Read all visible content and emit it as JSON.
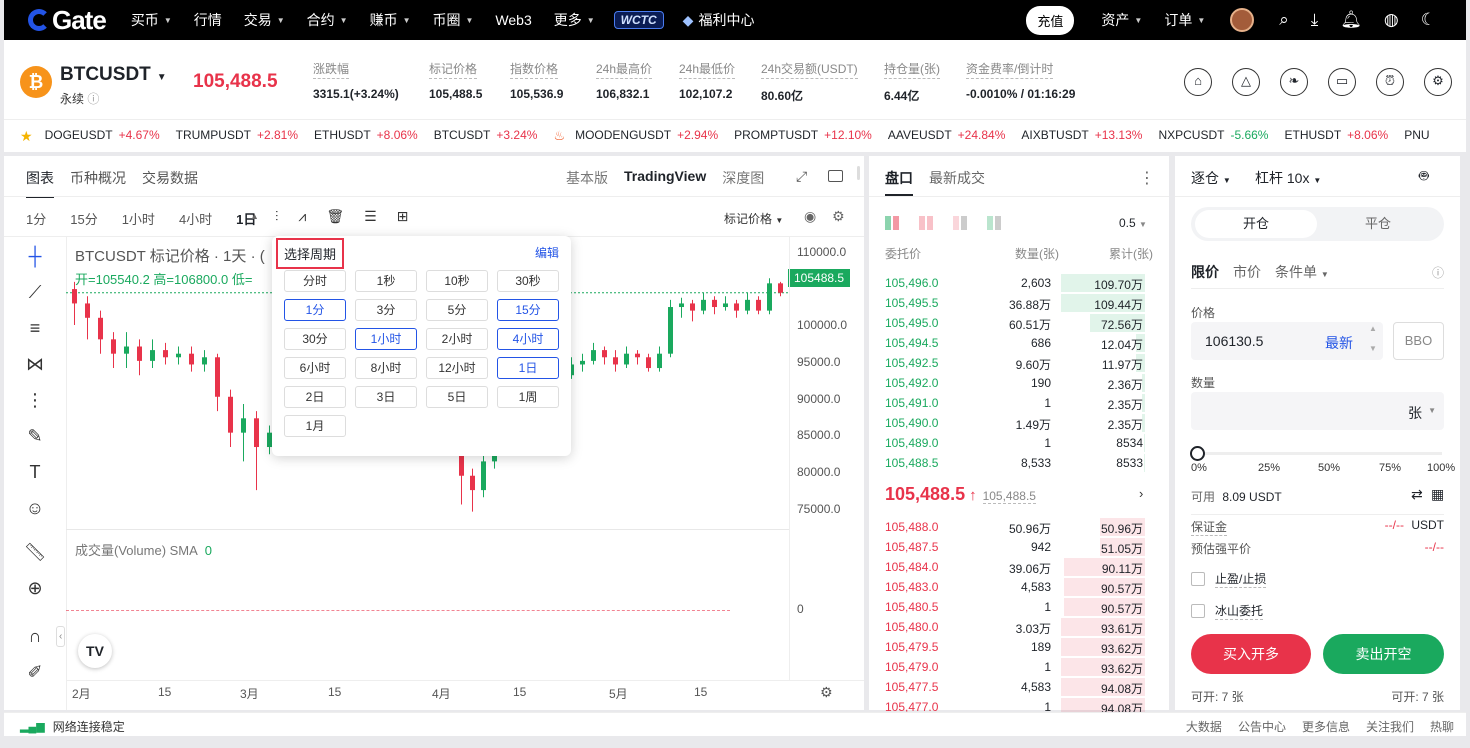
{
  "nav": {
    "logo": "Gate",
    "items": [
      "买币",
      "行情",
      "交易",
      "合约",
      "赚币",
      "币圈",
      "Web3",
      "更多"
    ],
    "carets": [
      true,
      false,
      true,
      true,
      true,
      true,
      false,
      true
    ],
    "wctc": "WCTC",
    "welfare": "福利中心",
    "deposit": "充值",
    "assets": "资产",
    "orders": "订单"
  },
  "header": {
    "symbol": "BTCUSDT",
    "subtitle": "永续",
    "last_price": "105,488.5",
    "stats": [
      {
        "label": "涨跌幅",
        "value": "3315.1(+3.24%)",
        "tone": "up"
      },
      {
        "label": "标记价格",
        "value": "105,488.5",
        "tone": ""
      },
      {
        "label": "指数价格",
        "value": "105,536.9",
        "tone": ""
      },
      {
        "label": "24h最高价",
        "value": "106,832.1",
        "tone": ""
      },
      {
        "label": "24h最低价",
        "value": "102,107.2",
        "tone": ""
      },
      {
        "label": "24h交易额(USDT)",
        "value": "80.60亿",
        "tone": ""
      },
      {
        "label": "持仓量(张)",
        "value": "6.44亿",
        "tone": ""
      },
      {
        "label": "资金费率/倒计时",
        "value": "-0.0010% / 01:16:29",
        "tone": "dn"
      }
    ]
  },
  "ticker": [
    {
      "name": "DOGEUSDT",
      "chg": "+4.67%",
      "tone": "up"
    },
    {
      "name": "TRUMPUSDT",
      "chg": "+2.81%",
      "tone": "up"
    },
    {
      "name": "ETHUSDT",
      "chg": "+8.06%",
      "tone": "up"
    },
    {
      "name": "BTCUSDT",
      "chg": "+3.24%",
      "tone": "up"
    },
    {
      "name": "MOODENGUSDT",
      "chg": "+2.94%",
      "tone": "up"
    },
    {
      "name": "PROMPTUSDT",
      "chg": "+12.10%",
      "tone": "up"
    },
    {
      "name": "AAVEUSDT",
      "chg": "+24.84%",
      "tone": "up"
    },
    {
      "name": "AIXBTUSDT",
      "chg": "+13.13%",
      "tone": "up"
    },
    {
      "name": "NXPCUSDT",
      "chg": "-5.66%",
      "tone": "dn"
    },
    {
      "name": "ETHUSDT",
      "chg": "+8.06%",
      "tone": "up"
    },
    {
      "name": "PNU",
      "chg": "",
      "tone": "up"
    }
  ],
  "chart": {
    "tabs": [
      "图表",
      "币种概况",
      "交易数据"
    ],
    "views": [
      "基本版",
      "TradingView",
      "深度图"
    ],
    "intervals": [
      "1分",
      "15分",
      "1小时",
      "4小时",
      "1日"
    ],
    "mark_price_label": "标记价格",
    "title": "BTCUSDT 标记价格 · 1天 · (",
    "ohlc": "开=105540.2  高=106800.0  低=",
    "volume_label": "成交量(Volume) SMA",
    "volume_value": "0",
    "y_ticks": [
      "110000.0",
      "100000.0",
      "95000.0",
      "90000.0",
      "85000.0",
      "80000.0",
      "75000.0"
    ],
    "price_tag": "105488.5",
    "vol_zero": "0",
    "x_ticks": [
      "2月",
      "15",
      "3月",
      "15",
      "4月",
      "15",
      "5月",
      "15"
    ]
  },
  "chart_data": {
    "type": "candlestick",
    "ylim": [
      73000,
      112000
    ],
    "candles": [
      [
        106000,
        104000,
        107000,
        101000
      ],
      [
        104000,
        102000,
        105000,
        99000
      ],
      [
        102000,
        99000,
        103000,
        97000
      ],
      [
        99000,
        97000,
        100000,
        95000
      ],
      [
        97000,
        98000,
        100000,
        95000
      ],
      [
        98000,
        96000,
        99000,
        94000
      ],
      [
        96000,
        97500,
        99000,
        95000
      ],
      [
        97500,
        96500,
        98500,
        95500
      ],
      [
        96500,
        97000,
        98000,
        95500
      ],
      [
        97000,
        95500,
        98000,
        94500
      ],
      [
        95500,
        96500,
        97500,
        94500
      ],
      [
        96500,
        91000,
        97000,
        89000
      ],
      [
        91000,
        86000,
        92000,
        84000
      ],
      [
        86000,
        88000,
        90000,
        82000
      ],
      [
        88000,
        84000,
        89000,
        78000
      ],
      [
        84000,
        86000,
        87000,
        83000
      ]
    ]
  },
  "timeframe_popup": {
    "title": "选择周期",
    "edit": "编辑",
    "options": [
      {
        "label": "分时",
        "sel": false
      },
      {
        "label": "1秒",
        "sel": false
      },
      {
        "label": "10秒",
        "sel": false
      },
      {
        "label": "30秒",
        "sel": false
      },
      {
        "label": "1分",
        "sel": true
      },
      {
        "label": "3分",
        "sel": false
      },
      {
        "label": "5分",
        "sel": false
      },
      {
        "label": "15分",
        "sel": true
      },
      {
        "label": "30分",
        "sel": false
      },
      {
        "label": "1小时",
        "sel": true
      },
      {
        "label": "2小时",
        "sel": false
      },
      {
        "label": "4小时",
        "sel": true
      },
      {
        "label": "6小时",
        "sel": false
      },
      {
        "label": "8小时",
        "sel": false
      },
      {
        "label": "12小时",
        "sel": false
      },
      {
        "label": "1日",
        "sel": true
      },
      {
        "label": "2日",
        "sel": false
      },
      {
        "label": "3日",
        "sel": false
      },
      {
        "label": "5日",
        "sel": false
      },
      {
        "label": "1周",
        "sel": false
      },
      {
        "label": "1月",
        "sel": false
      }
    ]
  },
  "orderbook": {
    "tabs": [
      "盘口",
      "最新成交"
    ],
    "precision": "0.5",
    "headers": [
      "委托价",
      "数量(张)",
      "累计(张)"
    ],
    "bids": [
      [
        "105,496.0",
        "2,603",
        "109.70万",
        1.0
      ],
      [
        "105,495.5",
        "36.88万",
        "109.44万",
        1.0
      ],
      [
        "105,495.0",
        "60.51万",
        "72.56万",
        0.66
      ],
      [
        "105,494.5",
        "686",
        "12.04万",
        0.11
      ],
      [
        "105,492.5",
        "9.60万",
        "11.97万",
        0.11
      ],
      [
        "105,492.0",
        "190",
        "2.36万",
        0.03
      ],
      [
        "105,491.0",
        "1",
        "2.35万",
        0.03
      ],
      [
        "105,490.0",
        "1.49万",
        "2.35万",
        0.03
      ],
      [
        "105,489.0",
        "1",
        "8534",
        0.01
      ],
      [
        "105,488.5",
        "8,533",
        "8533",
        0.01
      ]
    ],
    "mid_price": "105,488.5",
    "mid_arrow": "↑",
    "mid_mark": "105,488.5",
    "asks": [
      [
        "105,488.0",
        "50.96万",
        "50.96万",
        0.54
      ],
      [
        "105,487.5",
        "942",
        "51.05万",
        0.54
      ],
      [
        "105,484.0",
        "39.06万",
        "90.11万",
        0.96
      ],
      [
        "105,483.0",
        "4,583",
        "90.57万",
        0.96
      ],
      [
        "105,480.5",
        "1",
        "90.57万",
        0.96
      ],
      [
        "105,480.0",
        "3.03万",
        "93.61万",
        1.0
      ],
      [
        "105,479.5",
        "189",
        "93.62万",
        1.0
      ],
      [
        "105,479.0",
        "1",
        "93.62万",
        1.0
      ],
      [
        "105,477.5",
        "4,583",
        "94.08万",
        1.0
      ],
      [
        "105,477.0",
        "1",
        "94.08万",
        1.0
      ]
    ]
  },
  "trade": {
    "mode": "逐仓",
    "leverage": "杠杆 10x",
    "open": "开仓",
    "close": "平仓",
    "types": [
      "限价",
      "市价",
      "条件单"
    ],
    "price_label": "价格",
    "price_value": "106130.5",
    "latest": "最新",
    "bbo": "BBO",
    "qty_label": "数量",
    "unit": "张",
    "slider_marks": [
      "0%",
      "25%",
      "50%",
      "75%",
      "100%"
    ],
    "avail_label": "可用",
    "avail_value": "8.09 USDT",
    "margin_label": "保证金",
    "margin_value": "--/--",
    "margin_unit": "USDT",
    "liq_label": "预估强平价",
    "liq_value": "--/--",
    "tp_sl": "止盈/止损",
    "iceberg": "冰山委托",
    "buy": "买入开多",
    "sell": "卖出开空",
    "can_open_left": "可开: 7 张",
    "can_open_right": "可开: 7 张"
  },
  "footer": {
    "status": "网络连接稳定",
    "links": [
      "大数据",
      "公告中心",
      "更多信息",
      "关注我们",
      "热聊"
    ]
  }
}
